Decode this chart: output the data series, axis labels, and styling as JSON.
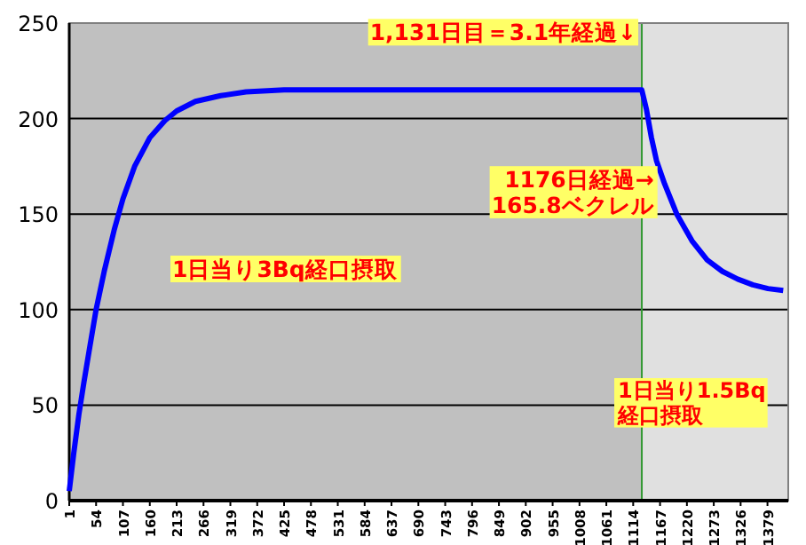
{
  "chart_data": {
    "type": "line",
    "x": [
      1,
      10,
      20,
      30,
      40,
      54,
      70,
      90,
      107,
      130,
      160,
      190,
      213,
      250,
      300,
      350,
      425,
      600,
      800,
      1000,
      1131,
      1140,
      1150,
      1160,
      1176,
      1200,
      1230,
      1260,
      1290,
      1320,
      1350,
      1380,
      1410
    ],
    "series": [
      {
        "color": "#0000ff",
        "values": [
          5,
          25,
          45,
          62,
          78,
          100,
          120,
          142,
          158,
          175,
          190,
          199,
          204,
          209,
          212,
          214,
          215,
          215,
          215,
          215,
          215,
          205,
          190,
          178,
          165.8,
          150,
          136,
          126,
          120,
          116,
          113,
          111,
          110
        ]
      }
    ],
    "xlim": [
      1,
      1420
    ],
    "ylim": [
      0,
      250
    ],
    "xticks": [
      1,
      54,
      107,
      160,
      213,
      266,
      319,
      372,
      425,
      478,
      531,
      584,
      637,
      690,
      743,
      796,
      849,
      902,
      955,
      1008,
      1061,
      1114,
      1167,
      1220,
      1273,
      1326,
      1379
    ],
    "yticks": [
      0,
      50,
      100,
      150,
      200,
      250
    ],
    "grid": "y",
    "marker": "none",
    "line_style": "solid",
    "bands": [
      {
        "axis": "x",
        "from": 1,
        "to": 1131,
        "color": "#c0c0c0"
      },
      {
        "axis": "x",
        "from": 1131,
        "to": 1420,
        "color": "#e0e0e0"
      }
    ],
    "ref_lines": [
      {
        "axis": "x",
        "value": 1131,
        "color": "#339933"
      }
    ],
    "annotations": [
      {
        "text": "1,131日目＝3.1年経過↓",
        "x": 1131,
        "y": 215
      },
      {
        "text": "1176日経過→\n165.8ベクレル",
        "x": 1176,
        "y": 165.8
      },
      "1日当り3Bq経口摂取",
      "1日当り1.5Bq\n経口摂取"
    ]
  }
}
